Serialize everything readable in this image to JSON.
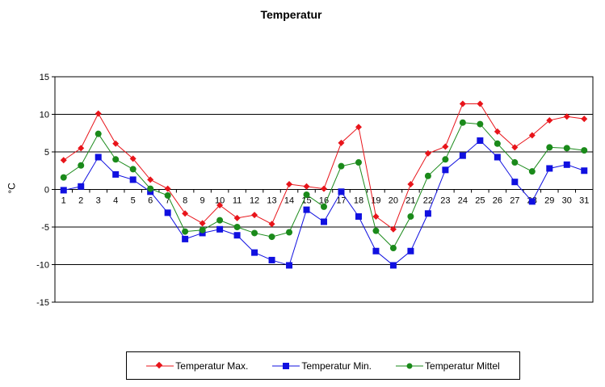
{
  "chart_data": {
    "type": "line",
    "title": "Temperatur",
    "xlabel": "",
    "ylabel": "°C",
    "ylim": [
      -15,
      15
    ],
    "yticks": [
      "15",
      "10",
      "5",
      "0",
      "-5",
      "-10",
      "-15"
    ],
    "ytick_values": [
      15,
      10,
      5,
      0,
      -5,
      -10,
      -15
    ],
    "grid": true,
    "legend_position": "bottom",
    "categories": [
      "1",
      "2",
      "3",
      "4",
      "5",
      "6",
      "7",
      "8",
      "9",
      "10",
      "11",
      "12",
      "13",
      "14",
      "15",
      "16",
      "17",
      "18",
      "19",
      "20",
      "21",
      "22",
      "23",
      "24",
      "25",
      "26",
      "27",
      "28",
      "29",
      "30",
      "31"
    ],
    "series": [
      {
        "name": "Temperatur Max.",
        "color": "#e8141a",
        "marker": "diamond",
        "values": [
          3.9,
          5.5,
          10.1,
          6.1,
          4.1,
          1.3,
          0.1,
          -3.2,
          -4.5,
          -2.1,
          -3.8,
          -3.4,
          -4.6,
          0.7,
          0.4,
          0.1,
          6.2,
          8.3,
          -3.6,
          -5.3,
          0.7,
          4.8,
          5.7,
          11.4,
          11.4,
          7.7,
          5.6,
          7.2,
          9.2,
          9.7,
          9.4
        ]
      },
      {
        "name": "Temperatur Min.",
        "color": "#1010e0",
        "marker": "square",
        "values": [
          -0.1,
          0.4,
          4.3,
          2.0,
          1.3,
          -0.3,
          -3.1,
          -6.6,
          -5.8,
          -5.3,
          -6.1,
          -8.4,
          -9.4,
          -10.1,
          -2.7,
          -4.3,
          -0.3,
          -3.6,
          -8.2,
          -10.1,
          -8.2,
          -3.2,
          2.6,
          4.5,
          6.5,
          4.3,
          1.0,
          -1.6,
          2.8,
          3.3,
          2.5
        ]
      },
      {
        "name": "Temperatur Mittel",
        "color": "#1a8a1a",
        "marker": "circle",
        "values": [
          1.6,
          3.2,
          7.4,
          4.0,
          2.7,
          0.1,
          -0.8,
          -5.6,
          -5.4,
          -4.1,
          -5.0,
          -5.8,
          -6.3,
          -5.7,
          -0.7,
          -2.3,
          3.1,
          3.6,
          -5.5,
          -7.8,
          -3.6,
          1.8,
          4.0,
          8.9,
          8.7,
          6.1,
          3.6,
          2.4,
          5.6,
          5.5,
          5.2
        ]
      }
    ]
  }
}
